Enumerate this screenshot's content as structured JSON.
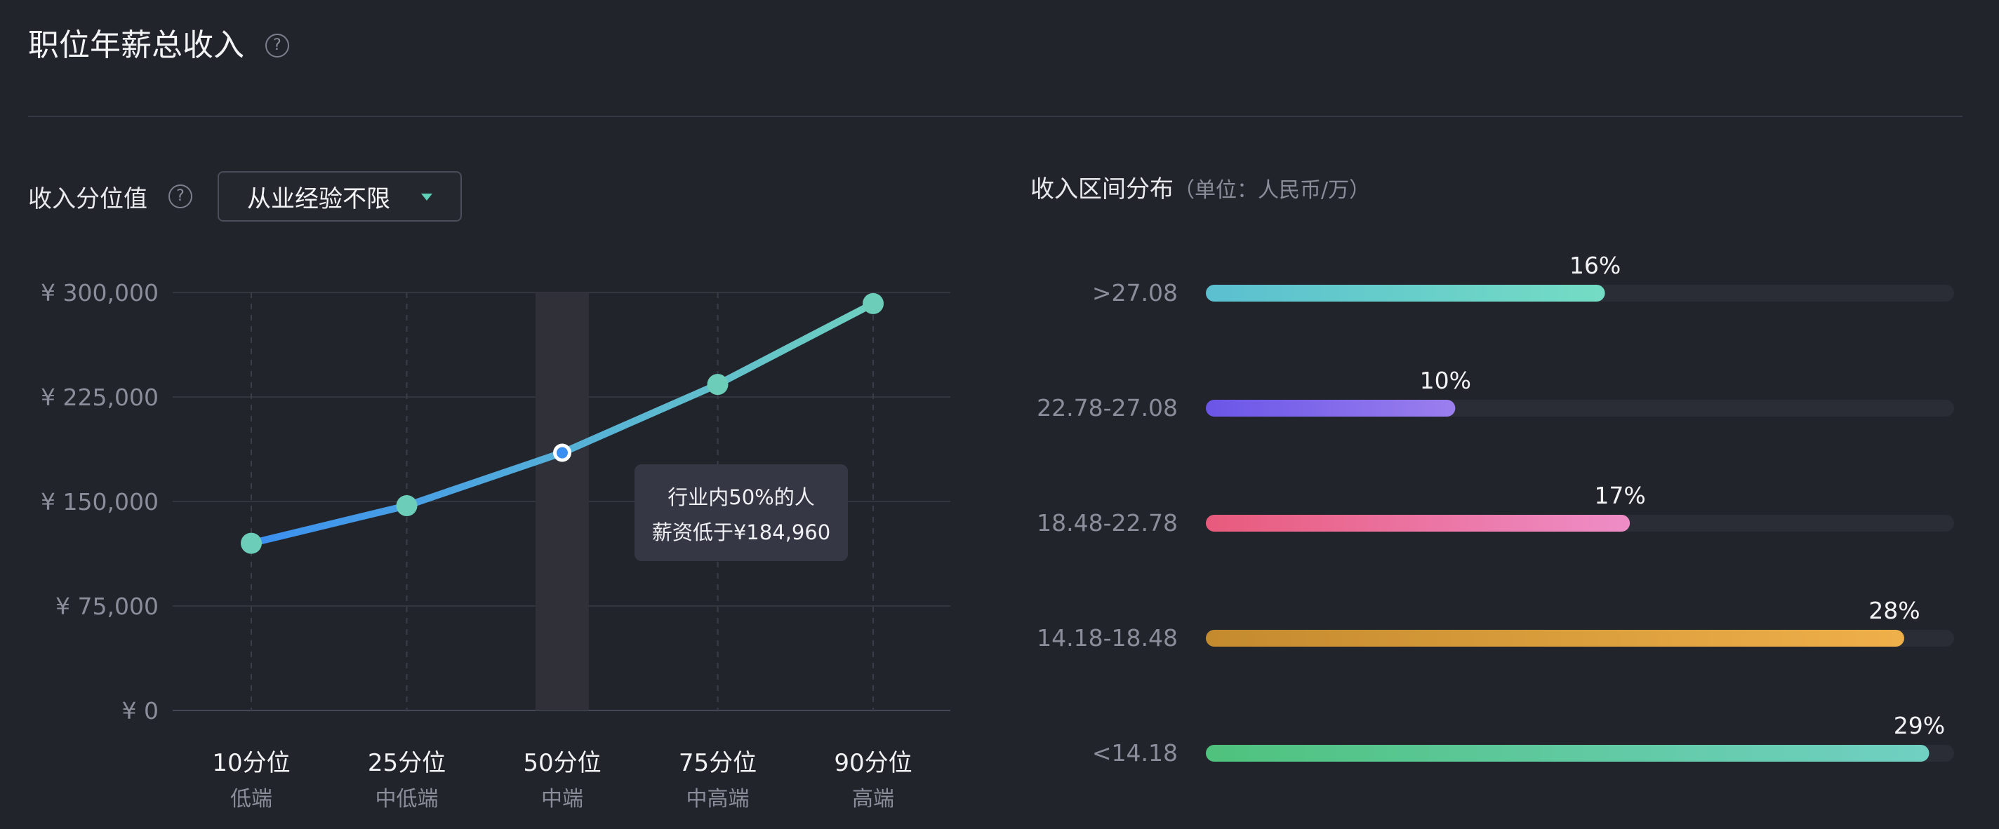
{
  "header": {
    "title": "职位年薪总收入",
    "help_icon": "question-circle-icon"
  },
  "percentile_panel": {
    "label": "收入分位值",
    "help_icon": "question-circle-icon",
    "dropdown": {
      "selected": "从业经验不限",
      "caret_icon": "caret-down-icon"
    },
    "tooltip": {
      "line1": "行业内50%的人",
      "line2": "薪资低于¥184,960"
    }
  },
  "distribution_panel": {
    "title": "收入区间分布",
    "unit": "（单位：人民币/万）"
  },
  "chart_data": [
    {
      "type": "line",
      "categories": [
        "10分位",
        "25分位",
        "50分位",
        "75分位",
        "90分位"
      ],
      "sublabels": [
        "低端",
        "中低端",
        "中端",
        "中高端",
        "高端"
      ],
      "values": [
        120000,
        147000,
        184960,
        234000,
        292000
      ],
      "highlight_index": 2,
      "yticks": [
        "¥ 300,000",
        "¥ 225,000",
        "¥ 150,000",
        "¥ 75,000",
        "¥ 0"
      ],
      "ytick_values": [
        300000,
        225000,
        150000,
        75000,
        0
      ],
      "ylim": [
        0,
        300000
      ],
      "colors": {
        "line_start": "#3b8ff0",
        "line_end": "#6ed0c0",
        "point": "#6ccdb9",
        "highlight_fill": "#2f3038"
      }
    },
    {
      "type": "bar",
      "orientation": "horizontal",
      "categories": [
        ">27.08",
        "22.78-27.08",
        "18.48-22.78",
        "14.18-18.48",
        "<14.18"
      ],
      "values": [
        16,
        10,
        17,
        28,
        29
      ],
      "value_labels": [
        "16%",
        "10%",
        "17%",
        "28%",
        "29%"
      ],
      "xlim": [
        0,
        30
      ],
      "colors": [
        [
          "#5bbfd0",
          "#74dcc4"
        ],
        [
          "#6a55e8",
          "#9b7fee"
        ],
        [
          "#e85a7c",
          "#ee8dc7"
        ],
        [
          "#c48a2e",
          "#efb04a"
        ],
        [
          "#4fc27d",
          "#70d0c3"
        ]
      ],
      "track_color": "#2b2d36"
    }
  ]
}
